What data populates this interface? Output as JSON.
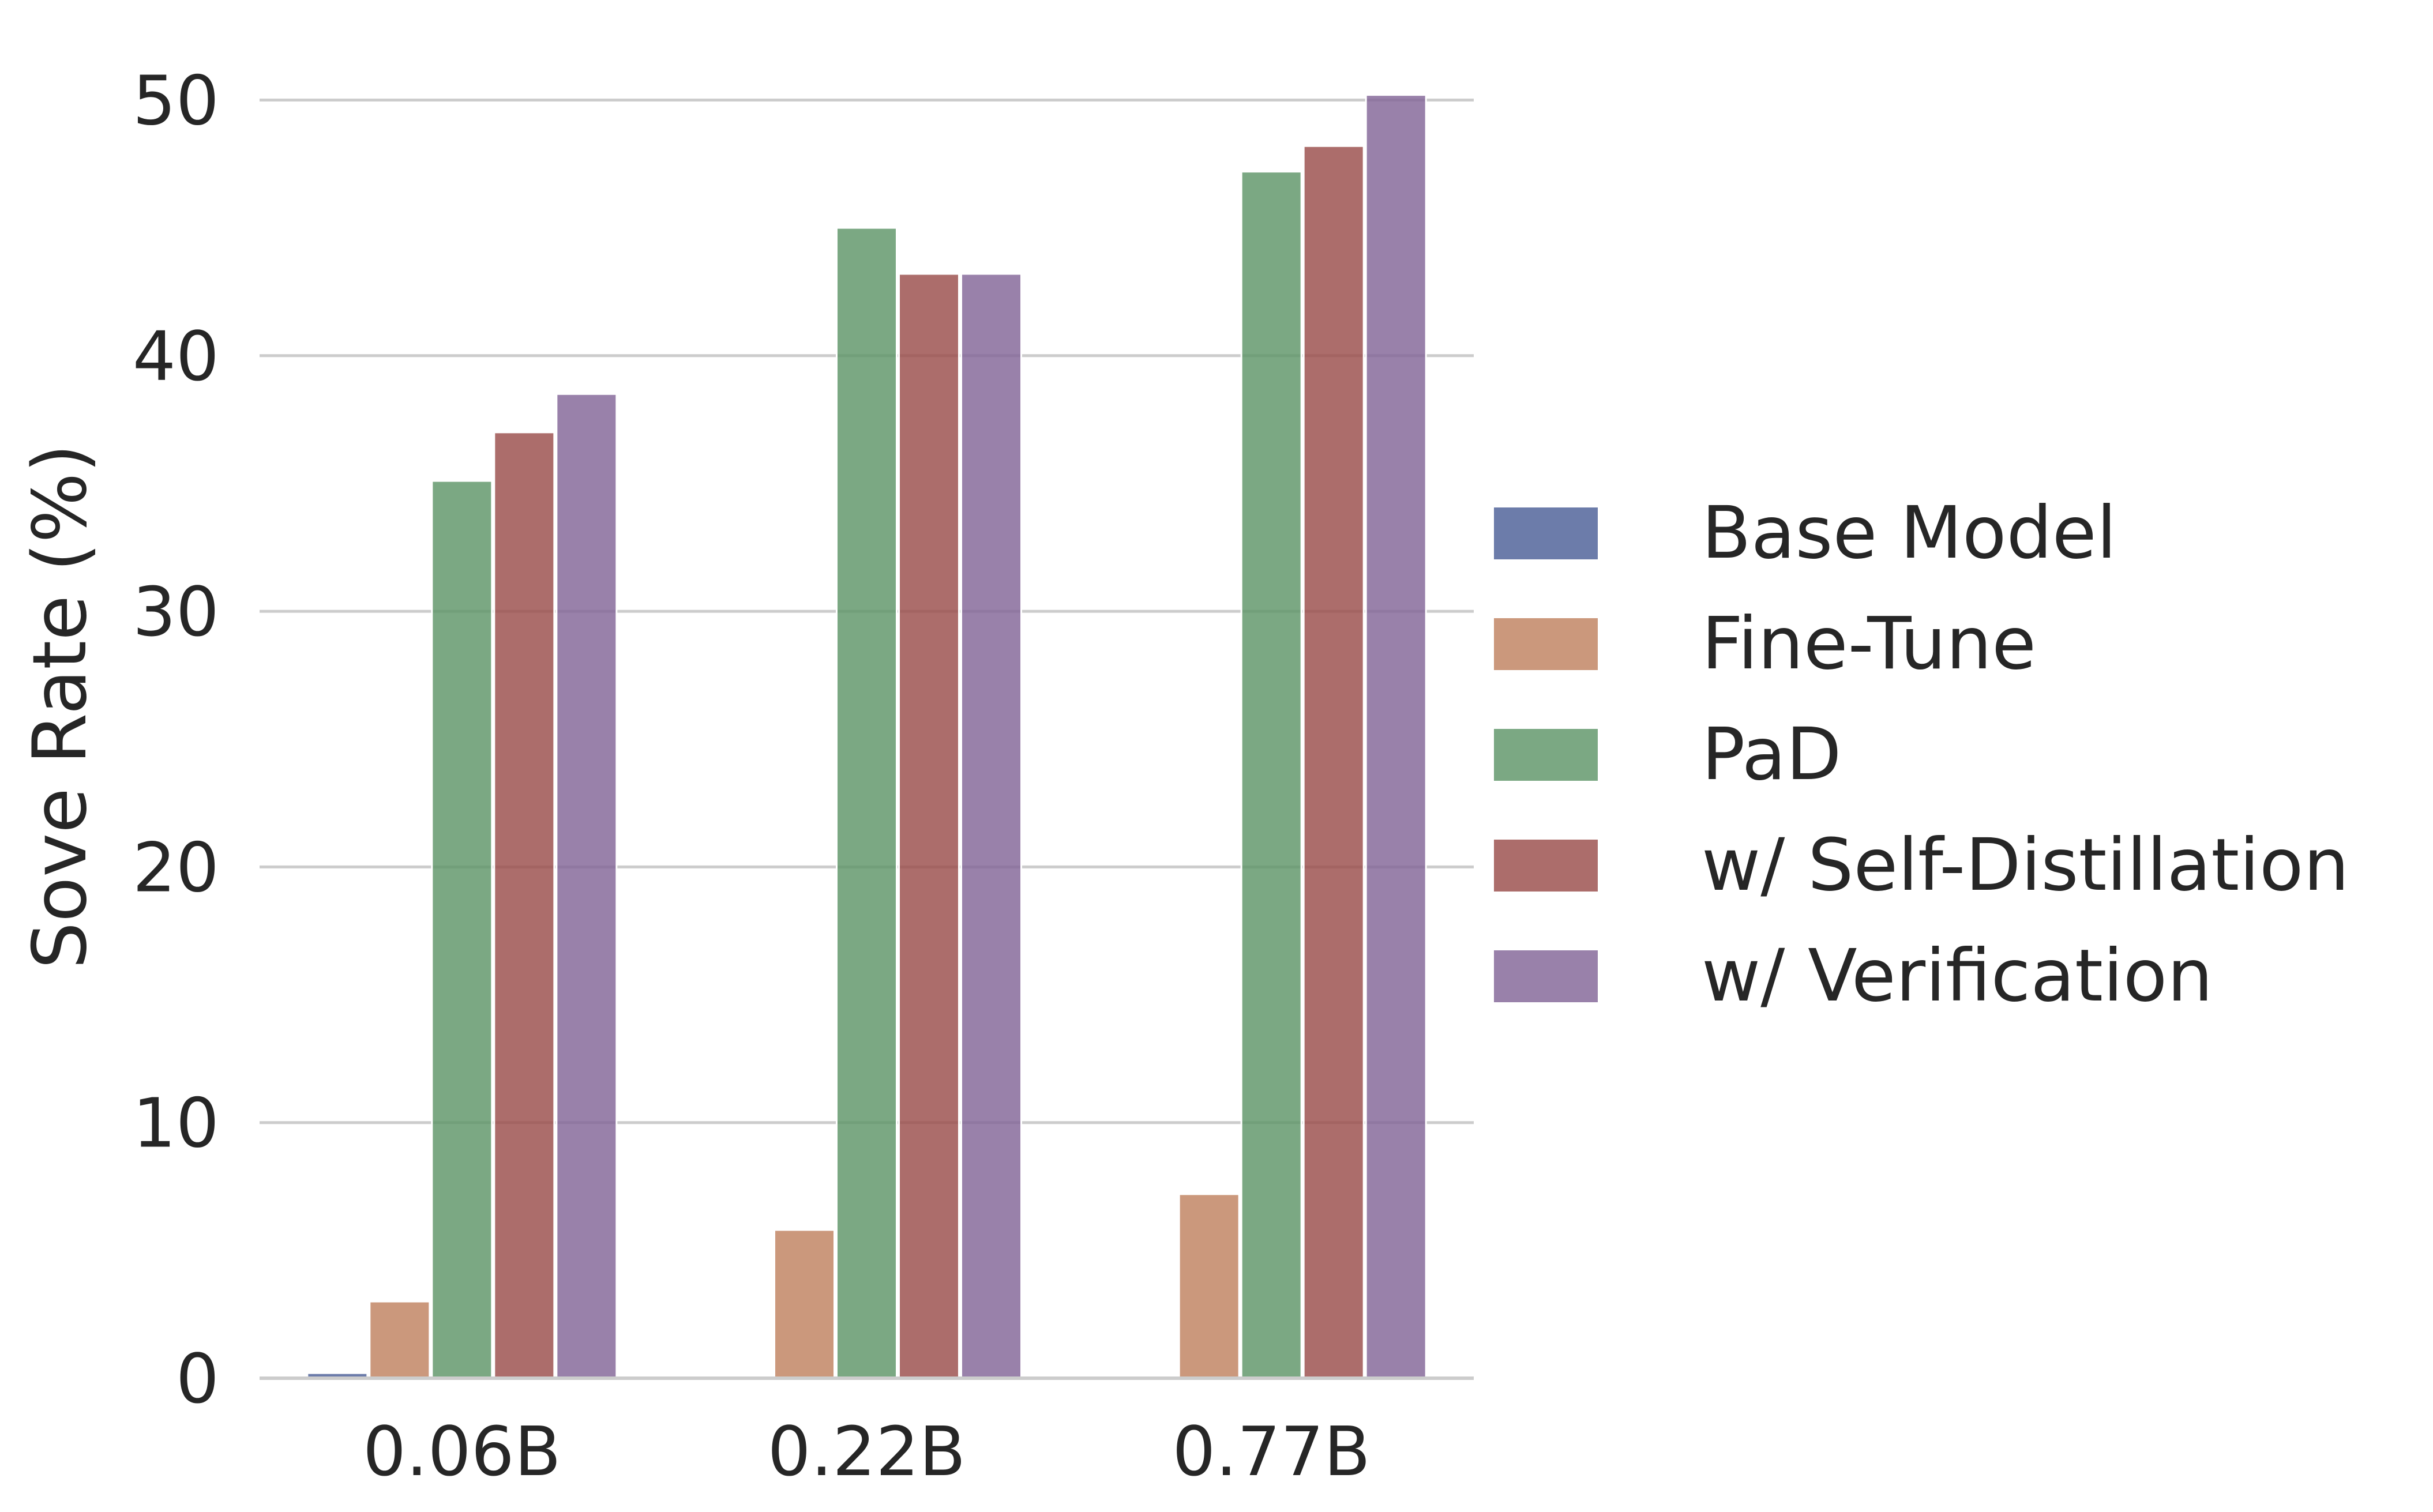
{
  "chart_data": {
    "type": "bar",
    "categories": [
      "0.06B",
      "0.22B",
      "0.77B"
    ],
    "ylabel": "Sove Rate (%)",
    "xlabel": "",
    "ylim": [
      0,
      51
    ],
    "yticks": [
      "0",
      "10",
      "20",
      "30",
      "40",
      "50"
    ],
    "grid": true,
    "legend_position": "right",
    "series": [
      {
        "name": "Base Model",
        "color": "#4c5f97",
        "values": [
          0.2,
          0,
          0
        ]
      },
      {
        "name": "Fine-Tune",
        "color": "#c0815f",
        "values": [
          3.0,
          5.8,
          7.2
        ]
      },
      {
        "name": "PaD",
        "color": "#5e9568",
        "values": [
          35.1,
          45.0,
          47.2
        ]
      },
      {
        "name": "w/ Self-Distillation",
        "color": "#9a4d4a",
        "values": [
          37.0,
          43.2,
          48.2
        ]
      },
      {
        "name": "w/ Verification",
        "color": "#836597",
        "values": [
          38.5,
          43.2,
          50.2
        ]
      }
    ]
  }
}
